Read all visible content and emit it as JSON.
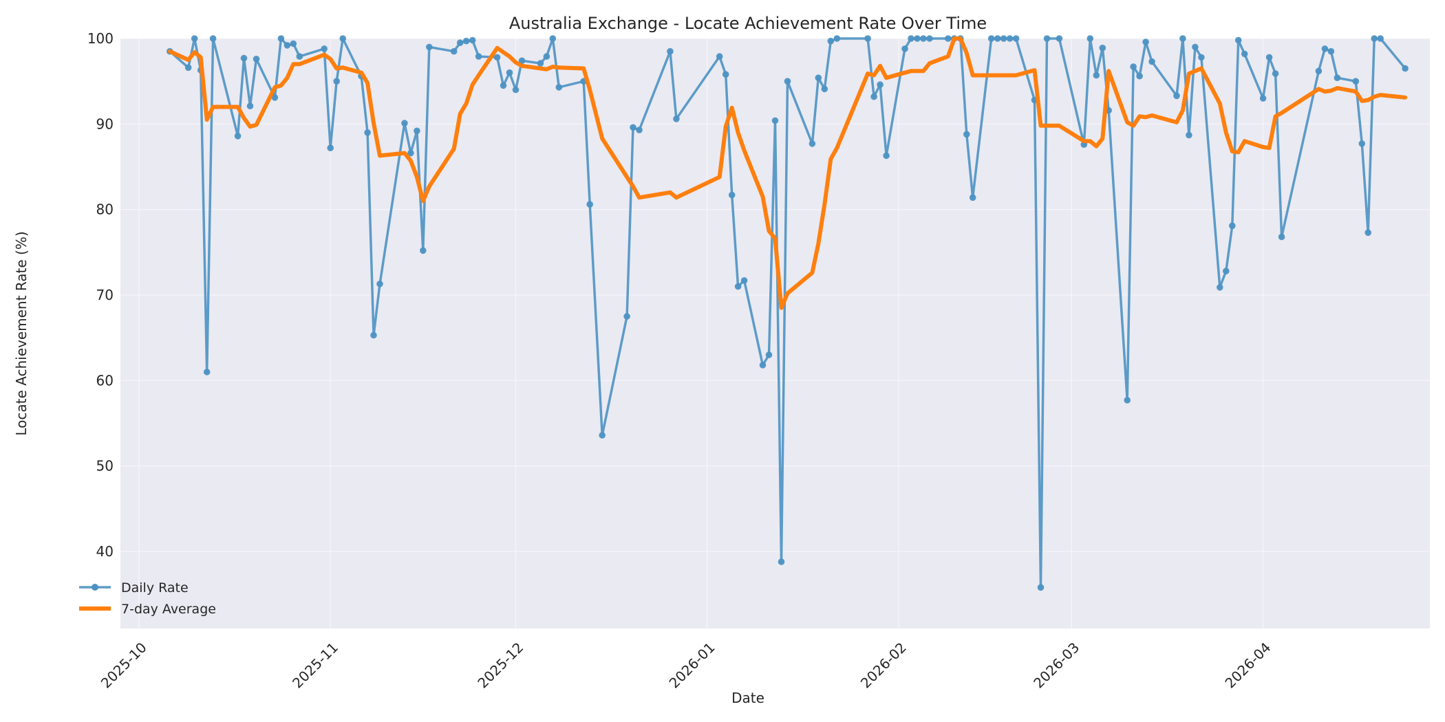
{
  "chart_data": {
    "type": "line",
    "title": "Australia Exchange - Locate Achievement Rate Over Time",
    "xlabel": "Date",
    "ylabel": "Locate Achievement Rate (%)",
    "xlim": [
      "2025-09-28",
      "2026-04-28"
    ],
    "ylim": [
      31,
      100
    ],
    "grid": true,
    "legend_position": "lower-left",
    "x_ticks": [
      "2025-10",
      "2025-11",
      "2025-12",
      "2026-01",
      "2026-02",
      "2026-03",
      "2026-04"
    ],
    "y_ticks": [
      40,
      50,
      60,
      70,
      80,
      90,
      100
    ],
    "series": [
      {
        "name": "Daily Rate",
        "color": "#4c92c3",
        "marker": "circle",
        "points": [
          [
            "2025-10-06",
            98.5
          ],
          [
            "2025-10-09",
            96.6
          ],
          [
            "2025-10-10",
            100
          ],
          [
            "2025-10-11",
            96.3
          ],
          [
            "2025-10-12",
            61.0
          ],
          [
            "2025-10-13",
            100
          ],
          [
            "2025-10-17",
            88.6
          ],
          [
            "2025-10-18",
            97.7
          ],
          [
            "2025-10-19",
            92.1
          ],
          [
            "2025-10-20",
            97.6
          ],
          [
            "2025-10-23",
            93.1
          ],
          [
            "2025-10-24",
            100
          ],
          [
            "2025-10-25",
            99.2
          ],
          [
            "2025-10-26",
            99.4
          ],
          [
            "2025-10-27",
            97.9
          ],
          [
            "2025-10-31",
            98.8
          ],
          [
            "2025-11-01",
            87.2
          ],
          [
            "2025-11-02",
            95.0
          ],
          [
            "2025-11-03",
            100
          ],
          [
            "2025-11-06",
            95.6
          ],
          [
            "2025-11-07",
            89.0
          ],
          [
            "2025-11-08",
            65.3
          ],
          [
            "2025-11-09",
            71.3
          ],
          [
            "2025-11-13",
            90.1
          ],
          [
            "2025-11-14",
            86.6
          ],
          [
            "2025-11-15",
            89.2
          ],
          [
            "2025-11-16",
            75.2
          ],
          [
            "2025-11-17",
            99.0
          ],
          [
            "2025-11-21",
            98.5
          ],
          [
            "2025-11-22",
            99.5
          ],
          [
            "2025-11-23",
            99.7
          ],
          [
            "2025-11-24",
            99.8
          ],
          [
            "2025-11-25",
            97.9
          ],
          [
            "2025-11-28",
            97.8
          ],
          [
            "2025-11-29",
            94.5
          ],
          [
            "2025-11-30",
            96.0
          ],
          [
            "2025-12-01",
            94.0
          ],
          [
            "2025-12-02",
            97.4
          ],
          [
            "2025-12-05",
            97.1
          ],
          [
            "2025-12-06",
            97.9
          ],
          [
            "2025-12-07",
            100
          ],
          [
            "2025-12-08",
            94.3
          ],
          [
            "2025-12-12",
            95.0
          ],
          [
            "2025-12-13",
            80.6
          ],
          [
            "2025-12-15",
            53.6
          ],
          [
            "2025-12-19",
            67.5
          ],
          [
            "2025-12-20",
            89.6
          ],
          [
            "2025-12-21",
            89.3
          ],
          [
            "2025-12-26",
            98.5
          ],
          [
            "2025-12-27",
            90.6
          ],
          [
            "2026-01-03",
            97.9
          ],
          [
            "2026-01-04",
            95.8
          ],
          [
            "2026-01-05",
            81.7
          ],
          [
            "2026-01-06",
            71.0
          ],
          [
            "2026-01-07",
            71.7
          ],
          [
            "2026-01-10",
            61.8
          ],
          [
            "2026-01-11",
            63.0
          ],
          [
            "2026-01-12",
            90.4
          ],
          [
            "2026-01-13",
            38.8
          ],
          [
            "2026-01-14",
            95.0
          ],
          [
            "2026-01-18",
            87.7
          ],
          [
            "2026-01-19",
            95.4
          ],
          [
            "2026-01-20",
            94.1
          ],
          [
            "2026-01-21",
            99.7
          ],
          [
            "2026-01-22",
            100
          ],
          [
            "2026-01-27",
            100
          ],
          [
            "2026-01-28",
            93.2
          ],
          [
            "2026-01-29",
            94.6
          ],
          [
            "2026-01-30",
            86.3
          ],
          [
            "2026-02-02",
            98.8
          ],
          [
            "2026-02-03",
            100
          ],
          [
            "2026-02-04",
            100
          ],
          [
            "2026-02-05",
            100
          ],
          [
            "2026-02-06",
            100
          ],
          [
            "2026-02-09",
            100
          ],
          [
            "2026-02-10",
            100
          ],
          [
            "2026-02-11",
            100
          ],
          [
            "2026-02-12",
            88.8
          ],
          [
            "2026-02-13",
            81.4
          ],
          [
            "2026-02-16",
            100
          ],
          [
            "2026-02-17",
            100
          ],
          [
            "2026-02-18",
            100
          ],
          [
            "2026-02-19",
            100
          ],
          [
            "2026-02-20",
            100
          ],
          [
            "2026-02-23",
            92.8
          ],
          [
            "2026-02-24",
            35.8
          ],
          [
            "2026-02-25",
            100
          ],
          [
            "2026-02-27",
            100
          ],
          [
            "2026-03-03",
            87.6
          ],
          [
            "2026-03-04",
            100
          ],
          [
            "2026-03-05",
            95.7
          ],
          [
            "2026-03-06",
            98.9
          ],
          [
            "2026-03-07",
            91.6
          ],
          [
            "2026-03-10",
            57.7
          ],
          [
            "2026-03-11",
            96.7
          ],
          [
            "2026-03-12",
            95.6
          ],
          [
            "2026-03-13",
            99.6
          ],
          [
            "2026-03-14",
            97.3
          ],
          [
            "2026-03-18",
            93.3
          ],
          [
            "2026-03-19",
            100
          ],
          [
            "2026-03-20",
            88.7
          ],
          [
            "2026-03-21",
            99.0
          ],
          [
            "2026-03-22",
            97.8
          ],
          [
            "2026-03-25",
            70.9
          ],
          [
            "2026-03-26",
            72.8
          ],
          [
            "2026-03-27",
            78.1
          ],
          [
            "2026-03-28",
            99.8
          ],
          [
            "2026-03-29",
            98.2
          ],
          [
            "2026-04-01",
            93.0
          ],
          [
            "2026-04-02",
            97.8
          ],
          [
            "2026-04-03",
            95.9
          ],
          [
            "2026-04-04",
            76.8
          ],
          [
            "2026-04-10",
            96.2
          ],
          [
            "2026-04-11",
            98.8
          ],
          [
            "2026-04-12",
            98.5
          ],
          [
            "2026-04-13",
            95.4
          ],
          [
            "2026-04-16",
            95.0
          ],
          [
            "2026-04-17",
            87.7
          ],
          [
            "2026-04-18",
            77.3
          ],
          [
            "2026-04-19",
            100
          ],
          [
            "2026-04-20",
            100
          ],
          [
            "2026-04-24",
            96.5
          ]
        ]
      },
      {
        "name": "7-day Average",
        "color": "#ff7f0e",
        "points": [
          [
            "2025-10-06",
            98.5
          ],
          [
            "2025-10-09",
            97.5
          ],
          [
            "2025-10-10",
            98.4
          ],
          [
            "2025-10-11",
            97.8
          ],
          [
            "2025-10-12",
            90.5
          ],
          [
            "2025-10-13",
            92.0
          ],
          [
            "2025-10-17",
            92.0
          ],
          [
            "2025-10-18",
            90.7
          ],
          [
            "2025-10-19",
            89.7
          ],
          [
            "2025-10-20",
            89.9
          ],
          [
            "2025-10-23",
            94.3
          ],
          [
            "2025-10-24",
            94.5
          ],
          [
            "2025-10-25",
            95.4
          ],
          [
            "2025-10-26",
            97.0
          ],
          [
            "2025-10-27",
            97.0
          ],
          [
            "2025-10-31",
            98.1
          ],
          [
            "2025-11-01",
            97.6
          ],
          [
            "2025-11-02",
            96.5
          ],
          [
            "2025-11-03",
            96.6
          ],
          [
            "2025-11-06",
            96.0
          ],
          [
            "2025-11-07",
            94.8
          ],
          [
            "2025-11-08",
            90.1
          ],
          [
            "2025-11-09",
            86.3
          ],
          [
            "2025-11-13",
            86.6
          ],
          [
            "2025-11-14",
            85.7
          ],
          [
            "2025-11-15",
            83.8
          ],
          [
            "2025-11-16",
            81.0
          ],
          [
            "2025-11-17",
            82.7
          ],
          [
            "2025-11-21",
            87.1
          ],
          [
            "2025-11-22",
            91.2
          ],
          [
            "2025-11-23",
            92.4
          ],
          [
            "2025-11-24",
            94.6
          ],
          [
            "2025-11-25",
            95.7
          ],
          [
            "2025-11-28",
            98.9
          ],
          [
            "2025-11-29",
            98.4
          ],
          [
            "2025-11-30",
            97.9
          ],
          [
            "2025-12-01",
            97.2
          ],
          [
            "2025-12-02",
            96.8
          ],
          [
            "2025-12-05",
            96.5
          ],
          [
            "2025-12-06",
            96.4
          ],
          [
            "2025-12-07",
            96.7
          ],
          [
            "2025-12-08",
            96.6
          ],
          [
            "2025-12-12",
            96.5
          ],
          [
            "2025-12-13",
            94.0
          ],
          [
            "2025-12-15",
            88.3
          ],
          [
            "2025-12-19",
            83.8
          ],
          [
            "2025-12-20",
            82.7
          ],
          [
            "2025-12-21",
            81.4
          ],
          [
            "2025-12-26",
            82.0
          ],
          [
            "2025-12-27",
            81.4
          ],
          [
            "2026-01-03",
            83.8
          ],
          [
            "2026-01-04",
            89.7
          ],
          [
            "2026-01-05",
            91.9
          ],
          [
            "2026-01-06",
            89.0
          ],
          [
            "2026-01-07",
            86.9
          ],
          [
            "2026-01-10",
            81.5
          ],
          [
            "2026-01-11",
            77.5
          ],
          [
            "2026-01-12",
            76.6
          ],
          [
            "2026-01-13",
            68.5
          ],
          [
            "2026-01-14",
            70.2
          ],
          [
            "2026-01-18",
            72.6
          ],
          [
            "2026-01-19",
            76.0
          ],
          [
            "2026-01-20",
            80.6
          ],
          [
            "2026-01-21",
            85.9
          ],
          [
            "2026-01-22",
            87.2
          ],
          [
            "2026-01-27",
            95.9
          ],
          [
            "2026-01-28",
            95.7
          ],
          [
            "2026-01-29",
            96.8
          ],
          [
            "2026-01-30",
            95.4
          ],
          [
            "2026-02-02",
            96.0
          ],
          [
            "2026-02-03",
            96.2
          ],
          [
            "2026-02-04",
            96.2
          ],
          [
            "2026-02-05",
            96.2
          ],
          [
            "2026-02-06",
            97.1
          ],
          [
            "2026-02-09",
            97.9
          ],
          [
            "2026-02-10",
            100
          ],
          [
            "2026-02-11",
            100
          ],
          [
            "2026-02-12",
            98.3
          ],
          [
            "2026-02-13",
            95.7
          ],
          [
            "2026-02-16",
            95.7
          ],
          [
            "2026-02-17",
            95.7
          ],
          [
            "2026-02-18",
            95.7
          ],
          [
            "2026-02-19",
            95.7
          ],
          [
            "2026-02-20",
            95.7
          ],
          [
            "2026-02-23",
            96.3
          ],
          [
            "2026-02-24",
            89.8
          ],
          [
            "2026-02-25",
            89.8
          ],
          [
            "2026-02-27",
            89.8
          ],
          [
            "2026-03-03",
            88.0
          ],
          [
            "2026-03-04",
            88.0
          ],
          [
            "2026-03-05",
            87.4
          ],
          [
            "2026-03-06",
            88.3
          ],
          [
            "2026-03-07",
            96.2
          ],
          [
            "2026-03-10",
            90.2
          ],
          [
            "2026-03-11",
            89.8
          ],
          [
            "2026-03-12",
            90.9
          ],
          [
            "2026-03-13",
            90.8
          ],
          [
            "2026-03-14",
            91.0
          ],
          [
            "2026-03-18",
            90.2
          ],
          [
            "2026-03-19",
            91.6
          ],
          [
            "2026-03-20",
            95.9
          ],
          [
            "2026-03-21",
            96.2
          ],
          [
            "2026-03-22",
            96.5
          ],
          [
            "2026-03-25",
            92.4
          ],
          [
            "2026-03-26",
            89.0
          ],
          [
            "2026-03-27",
            86.8
          ],
          [
            "2026-03-28",
            86.7
          ],
          [
            "2026-03-29",
            88.0
          ],
          [
            "2026-04-01",
            87.3
          ],
          [
            "2026-04-02",
            87.2
          ],
          [
            "2026-04-03",
            90.9
          ],
          [
            "2026-04-04",
            91.3
          ],
          [
            "2026-04-10",
            94.1
          ],
          [
            "2026-04-11",
            93.8
          ],
          [
            "2026-04-12",
            93.9
          ],
          [
            "2026-04-13",
            94.2
          ],
          [
            "2026-04-16",
            93.8
          ],
          [
            "2026-04-17",
            92.7
          ],
          [
            "2026-04-18",
            92.8
          ],
          [
            "2026-04-19",
            93.2
          ],
          [
            "2026-04-20",
            93.4
          ],
          [
            "2026-04-24",
            93.1
          ]
        ]
      }
    ]
  },
  "style": {
    "plot_bg": "#eaeaf2",
    "page_bg": "#ffffff",
    "text_color": "#262626"
  }
}
